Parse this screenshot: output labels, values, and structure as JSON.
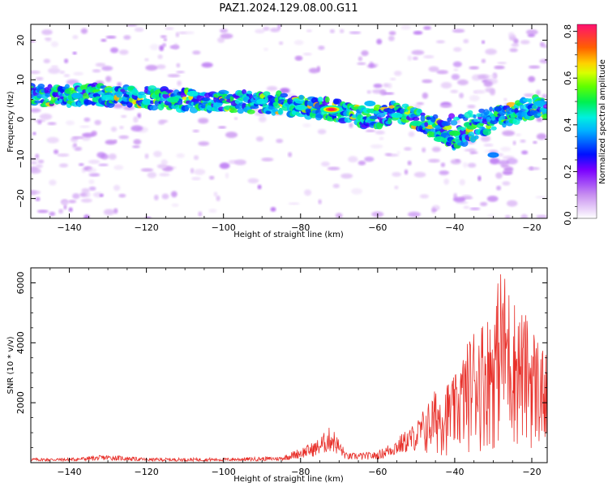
{
  "title": "PAZ1.2024.129.08.00.G11",
  "chart_data": [
    {
      "type": "heatmap",
      "xlabel": "Height of straight line (km)",
      "ylabel": "Frequency (Hz)",
      "xlim": [
        -150,
        -16
      ],
      "ylim": [
        -25,
        24
      ],
      "xticks": [
        -140,
        -120,
        -100,
        -80,
        -60,
        -40,
        -20
      ],
      "yticks": [
        -20,
        -10,
        0,
        10,
        20
      ],
      "colorbar": {
        "label": "Normalized spectral amplitude",
        "range": [
          0,
          0.83
        ],
        "ticks": [
          0.0,
          0.2,
          0.4,
          0.6,
          0.8
        ],
        "colormap": "gist_ncar_r"
      },
      "ridge": {
        "description_points": [
          {
            "x": -150,
            "y": 6
          },
          {
            "x": -130,
            "y": 6
          },
          {
            "x": -112,
            "y": 5
          },
          {
            "x": -95,
            "y": 4.5
          },
          {
            "x": -85,
            "y": 4
          },
          {
            "x": -72,
            "y": 2.5
          },
          {
            "x": -62,
            "y": 0
          },
          {
            "x": -55,
            "y": 2
          },
          {
            "x": -45,
            "y": -2
          },
          {
            "x": -40,
            "y": -5
          },
          {
            "x": -30,
            "y": 0
          },
          {
            "x": -20,
            "y": 3
          }
        ],
        "peak": {
          "x": -72,
          "y": 2.5,
          "value": 0.83
        }
      }
    },
    {
      "type": "line",
      "xlabel": "Height of straight line (km)",
      "ylabel": "SNR (10 * v/v)",
      "xlim": [
        -150,
        -16
      ],
      "ylim": [
        0,
        6500
      ],
      "xticks": [
        -140,
        -120,
        -100,
        -80,
        -60,
        -40,
        -20
      ],
      "yticks": [
        2000,
        4000,
        6000
      ],
      "grid": false,
      "series": [
        {
          "color": "#e8302a",
          "envelope_points": [
            {
              "x": -150,
              "y": 150
            },
            {
              "x": -140,
              "y": 150
            },
            {
              "x": -130,
              "y": 250
            },
            {
              "x": -120,
              "y": 150
            },
            {
              "x": -100,
              "y": 150
            },
            {
              "x": -85,
              "y": 200
            },
            {
              "x": -76,
              "y": 700
            },
            {
              "x": -72,
              "y": 1200
            },
            {
              "x": -68,
              "y": 300
            },
            {
              "x": -60,
              "y": 350
            },
            {
              "x": -55,
              "y": 800
            },
            {
              "x": -50,
              "y": 1300
            },
            {
              "x": -45,
              "y": 2400
            },
            {
              "x": -40,
              "y": 2800
            },
            {
              "x": -35,
              "y": 4500
            },
            {
              "x": -30,
              "y": 5000
            },
            {
              "x": -28,
              "y": 6500
            },
            {
              "x": -24,
              "y": 5200
            },
            {
              "x": -20,
              "y": 4600
            },
            {
              "x": -16,
              "y": 3400
            }
          ]
        }
      ]
    }
  ]
}
